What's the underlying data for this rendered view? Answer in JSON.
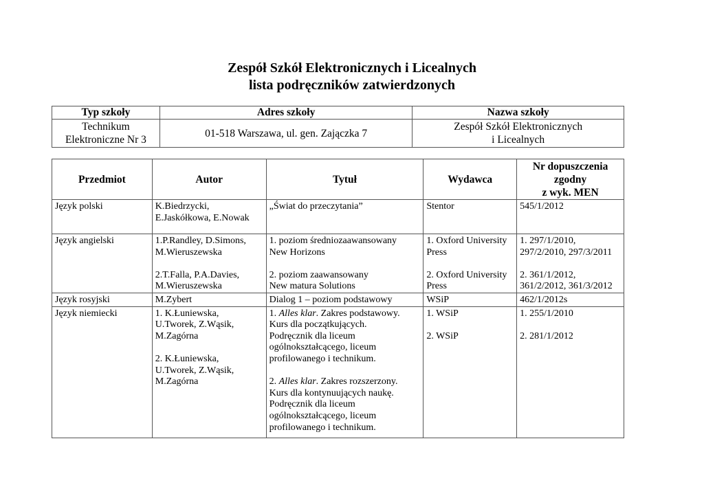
{
  "title_line1": "Zespół Szkół Elektronicznych i Licealnych",
  "title_line2": "lista podręczników zatwierdzonych",
  "school": {
    "headers": [
      "Typ szkoły",
      "Adres szkoły",
      "Nazwa szkoły"
    ],
    "type_lines": [
      "Technikum",
      "Elektroniczne Nr 3"
    ],
    "address": "01-518 Warszawa, ul. gen. Zajączka 7",
    "name_lines": [
      "Zespół Szkół Elektronicznych",
      "i Licealnych"
    ]
  },
  "books": {
    "headers": [
      "Przedmiot",
      "Autor",
      "Tytuł",
      "Wydawca"
    ],
    "header_nr_lines": [
      "Nr dopuszczenia",
      "zgodny",
      "z wyk. MEN"
    ],
    "rows": [
      {
        "subject": "Język polski",
        "autor": [
          [
            "K.Biedrzycki,",
            "E.Jaskółkowa, E.Nowak"
          ]
        ],
        "tytul": [
          [
            {
              "t": "„Świat do przeczytania”"
            }
          ]
        ],
        "wydawca": [
          [
            "Stentor"
          ]
        ],
        "nr": [
          [
            "545/1/2012"
          ]
        ]
      },
      {
        "subject": "Język angielski",
        "autor": [
          [
            "1.P.Randley, D.Simons,",
            "M.Wieruszewska"
          ],
          [
            "2.T.Falla, P.A.Davies,",
            "M.Wieruszewska"
          ]
        ],
        "tytul": [
          [
            {
              "t": "1. poziom średniozaawansowany"
            },
            {
              "t": "New Horizons"
            }
          ],
          [
            {
              "t": "2. poziom zaawansowany"
            },
            {
              "t": "New matura Solutions"
            }
          ]
        ],
        "wydawca": [
          [
            "1. Oxford University",
            "Press"
          ],
          [
            "2. Oxford University",
            "Press"
          ]
        ],
        "nr": [
          [
            "1. 297/1/2010,",
            "297/2/2010, 297/3/2011"
          ],
          [
            "2. 361/1/2012,",
            "361/2/2012, 361/3/2012"
          ]
        ]
      },
      {
        "subject": "Język rosyjski",
        "autor": [
          [
            "M.Zybert"
          ]
        ],
        "tytul": [
          [
            {
              "t": "Dialog 1 – poziom podstawowy"
            }
          ]
        ],
        "wydawca": [
          [
            "WSiP"
          ]
        ],
        "nr": [
          [
            "462/1/2012s"
          ]
        ]
      },
      {
        "subject": "Język niemiecki",
        "autor": [
          [
            "1. K.Łuniewska,",
            "U.Tworek, Z.Wąsik,",
            "M.Zagórna"
          ],
          [
            "2. K.Łuniewska,",
            "U.Tworek, Z.Wąsik,",
            "M.Zagórna"
          ]
        ],
        "tytul": [
          [
            {
              "pre": "1. ",
              "it": "Alles klar",
              "post": ". Zakres podstawowy."
            },
            {
              "t": "Kurs dla początkujących."
            },
            {
              "t": "Podręcznik dla liceum"
            },
            {
              "t": "ogólnokształcącego, liceum"
            },
            {
              "t": "profilowanego i technikum."
            }
          ],
          [
            {
              "pre": "2. ",
              "it": "Alles klar",
              "post": ". Zakres rozszerzony."
            },
            {
              "t": "Kurs dla kontynuujących naukę."
            },
            {
              "t": "Podręcznik dla liceum"
            },
            {
              "t": "ogólnokształcącego, liceum"
            },
            {
              "t": "profilowanego i technikum."
            }
          ]
        ],
        "wydawca": [
          [
            "1. WSiP"
          ],
          [
            "2. WSiP"
          ]
        ],
        "nr": [
          [
            "1. 255/1/2010"
          ],
          [
            "2. 281/1/2012"
          ]
        ]
      }
    ]
  }
}
